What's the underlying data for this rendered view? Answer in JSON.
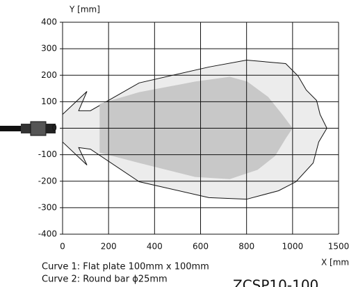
{
  "chart_data": {
    "type": "area",
    "y_label": "Y [mm]",
    "x_label": "X [mm]",
    "xlim": [
      0,
      1500
    ],
    "ylim": [
      -400,
      400
    ],
    "xticks": [
      0,
      200,
      400,
      600,
      800,
      1000,
      1500
    ],
    "yticks": [
      -400,
      -300,
      -200,
      -100,
      0,
      100,
      200,
      300,
      400
    ],
    "grid": true,
    "series": [
      {
        "name": "Curve 1: Flat plate 100mm x 100mm",
        "color": "#ececec",
        "x": [
          0,
          106,
          70,
          121,
          333,
          636,
          800,
          970,
          1060,
          1149,
          1261,
          1299,
          1373,
          1284,
          1224,
          1037,
          939,
          800,
          636,
          333,
          121,
          70,
          106,
          0
        ],
        "values": [
          52,
          139,
          66,
          66,
          171,
          231,
          257,
          244,
          197,
          144,
          105,
          52,
          0,
          -52,
          -131,
          -202,
          -236,
          -268,
          -262,
          -202,
          -79,
          -73,
          -139,
          -52
        ]
      },
      {
        "name": "Curve 2: Round bar ϕ25mm",
        "color": "#c8c8c8",
        "x": [
          161,
          333,
          576,
          727,
          803,
          894,
          955,
          1000,
          970,
          924,
          848,
          727,
          576,
          333,
          161
        ],
        "values": [
          92,
          136,
          176,
          194,
          176,
          118,
          52,
          0,
          -39,
          -105,
          -157,
          -192,
          -184,
          -131,
          -92
        ]
      }
    ],
    "model": "ZCSP10-100"
  }
}
